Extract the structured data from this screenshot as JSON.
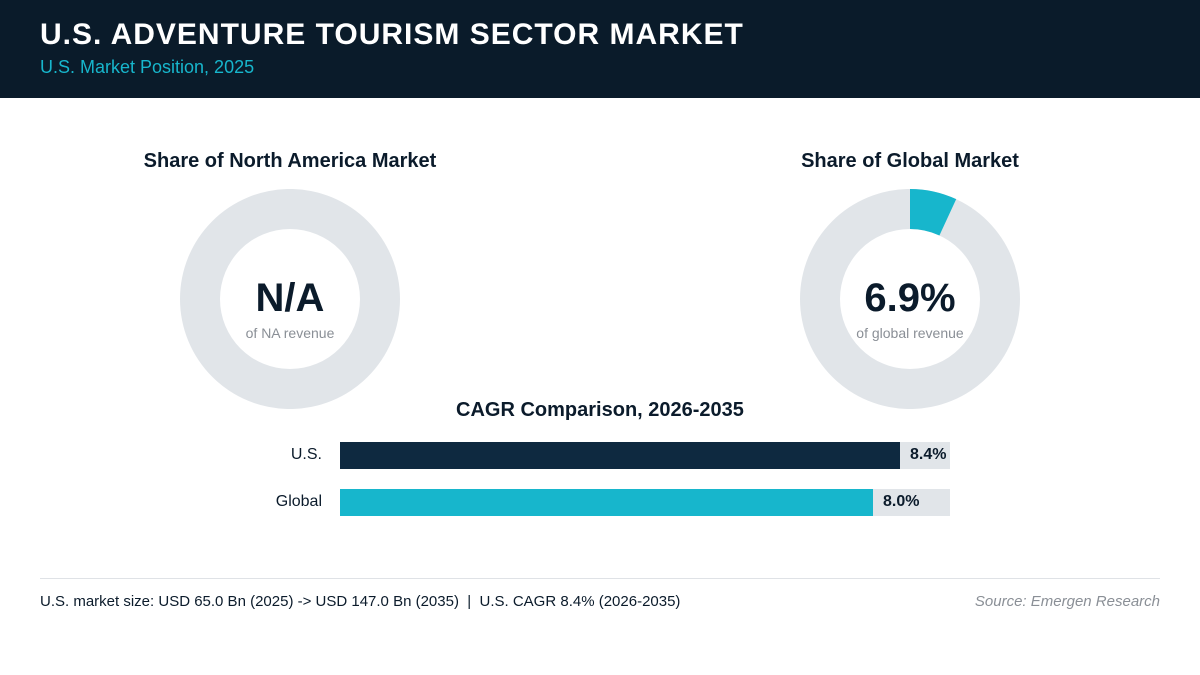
{
  "header": {
    "title": "U.S. ADVENTURE TOURISM SECTOR MARKET",
    "subtitle": "U.S. Market Position, 2025"
  },
  "colors": {
    "header_bg": "#0a1b2a",
    "accent": "#17b6cc",
    "dark_bar": "#0e2940",
    "track": "#e1e5e9"
  },
  "chart_data": [
    {
      "type": "pie",
      "title": "Share of North America Market",
      "center_value": "N/A",
      "center_caption": "of NA revenue",
      "value": null
    },
    {
      "type": "pie",
      "title": "Share of Global Market",
      "center_value": "6.9%",
      "center_caption": "of global revenue",
      "value": 6.9
    },
    {
      "type": "bar",
      "title": "CAGR Comparison, 2026-2035",
      "categories": [
        "U.S.",
        "Global"
      ],
      "values": [
        8.4,
        8.0
      ],
      "value_labels": [
        "8.4%",
        "8.0%"
      ],
      "xlim": [
        0,
        9.15
      ]
    }
  ],
  "footer": {
    "note": "U.S. market size: USD 65.0 Bn (2025) -> USD 147.0 Bn (2035)  |  U.S. CAGR 8.4% (2026-2035)",
    "source": "Source: Emergen Research"
  }
}
